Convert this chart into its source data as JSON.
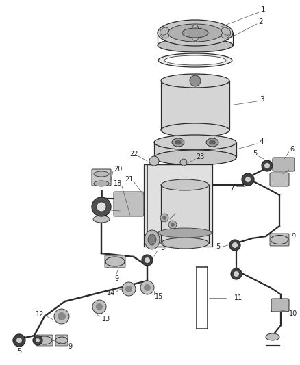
{
  "background_color": "#ffffff",
  "line_color": "#2a2a2a",
  "fig_width": 4.38,
  "fig_height": 5.33,
  "dpi": 100,
  "label_fontsize": 7.0,
  "lw_tube": 1.6,
  "lw_part": 0.9,
  "gray_fill": "#d8d8d8",
  "dark_gray": "#888888",
  "mid_gray": "#bbbbbb"
}
